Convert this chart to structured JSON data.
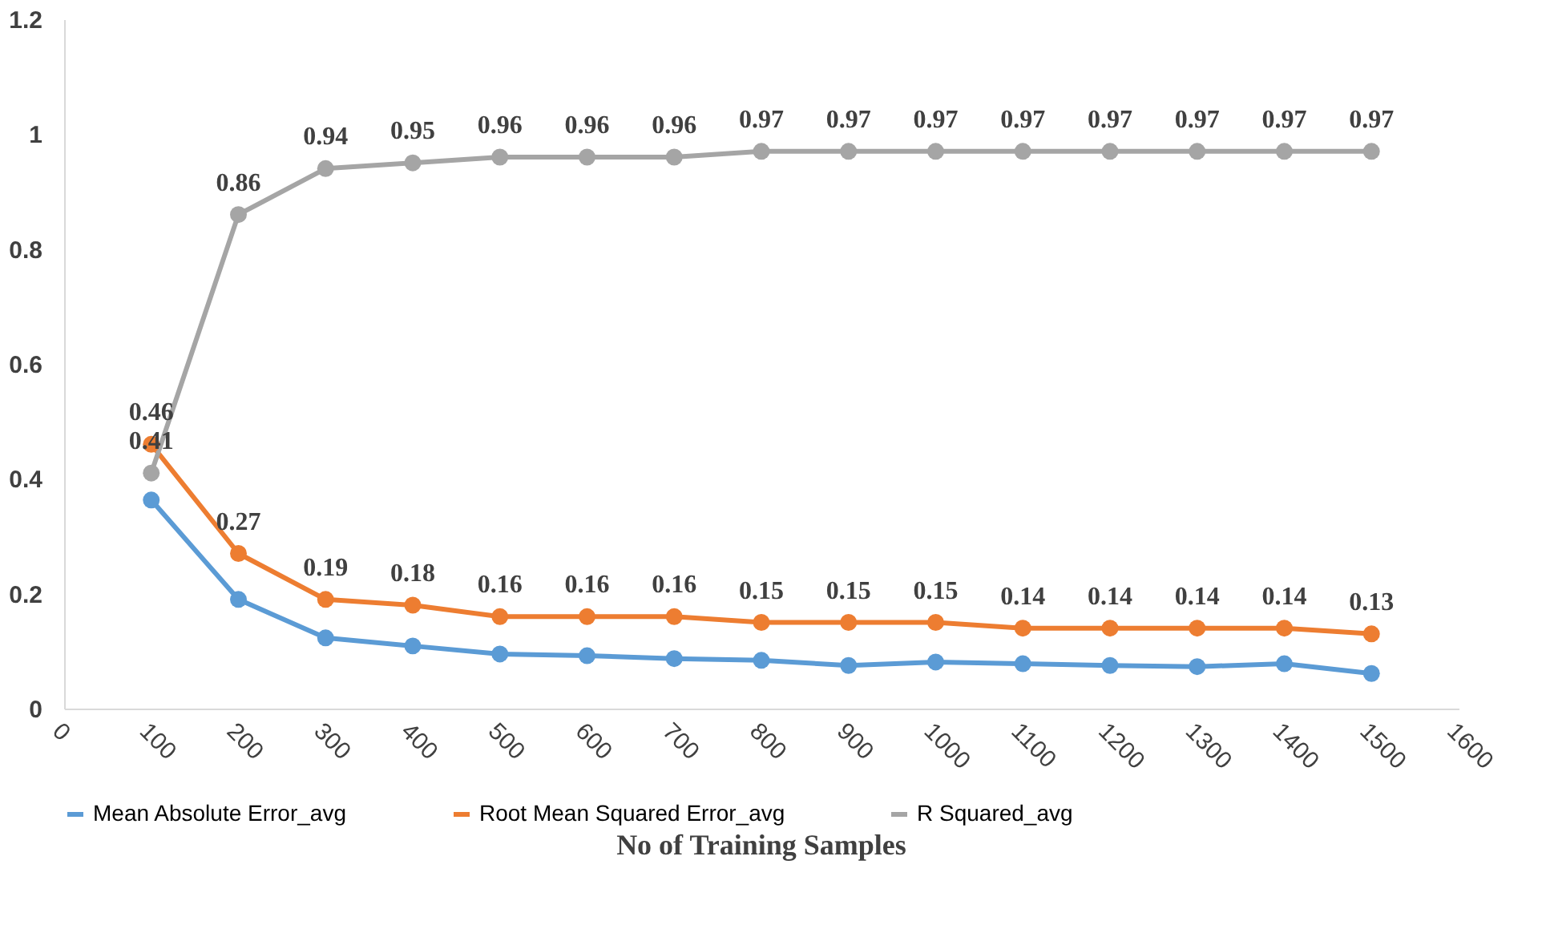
{
  "chart_data": {
    "type": "line",
    "xlabel": "No of Training Samples",
    "x": [
      100,
      200,
      300,
      400,
      500,
      600,
      700,
      800,
      900,
      1000,
      1100,
      1200,
      1300,
      1400,
      1500
    ],
    "xlim": [
      0,
      1600
    ],
    "xticks": [
      0,
      100,
      200,
      300,
      400,
      500,
      600,
      700,
      800,
      900,
      1000,
      1100,
      1200,
      1300,
      1400,
      1500,
      1600
    ],
    "ylim": [
      0,
      1.2
    ],
    "yticks": [
      0,
      0.2,
      0.4,
      0.6,
      0.8,
      1,
      1.2
    ],
    "grid": false,
    "legend": "bottom",
    "marker": "circle",
    "line_style": "solid",
    "series": [
      {
        "name": "Mean Absolute Error_avg",
        "color": "#5b9bd5",
        "values": [
          0.363,
          0.19,
          0.123,
          0.109,
          0.095,
          0.092,
          0.087,
          0.084,
          0.075,
          0.081,
          0.078,
          0.075,
          0.073,
          0.078,
          0.061
        ]
      },
      {
        "name": "Root Mean Squared Error_avg",
        "color": "#ed7d31",
        "values": [
          0.46,
          0.27,
          0.19,
          0.18,
          0.16,
          0.16,
          0.16,
          0.15,
          0.15,
          0.15,
          0.14,
          0.14,
          0.14,
          0.14,
          0.13
        ],
        "value_labels": [
          "0.46",
          "0.27",
          "0.19",
          "0.18",
          "0.16",
          "0.16",
          "0.16",
          "0.15",
          "0.15",
          "0.15",
          "0.14",
          "0.14",
          "0.14",
          "0.14",
          "0.13"
        ]
      },
      {
        "name": "R Squared_avg",
        "color": "#a5a5a5",
        "values": [
          0.41,
          0.86,
          0.94,
          0.95,
          0.96,
          0.96,
          0.96,
          0.97,
          0.97,
          0.97,
          0.97,
          0.97,
          0.97,
          0.97,
          0.97
        ],
        "value_labels": [
          "0.41",
          "0.86",
          "0.94",
          "0.95",
          "0.96",
          "0.96",
          "0.96",
          "0.97",
          "0.97",
          "0.97",
          "0.97",
          "0.97",
          "0.97",
          "0.97",
          "0.97"
        ]
      }
    ]
  }
}
